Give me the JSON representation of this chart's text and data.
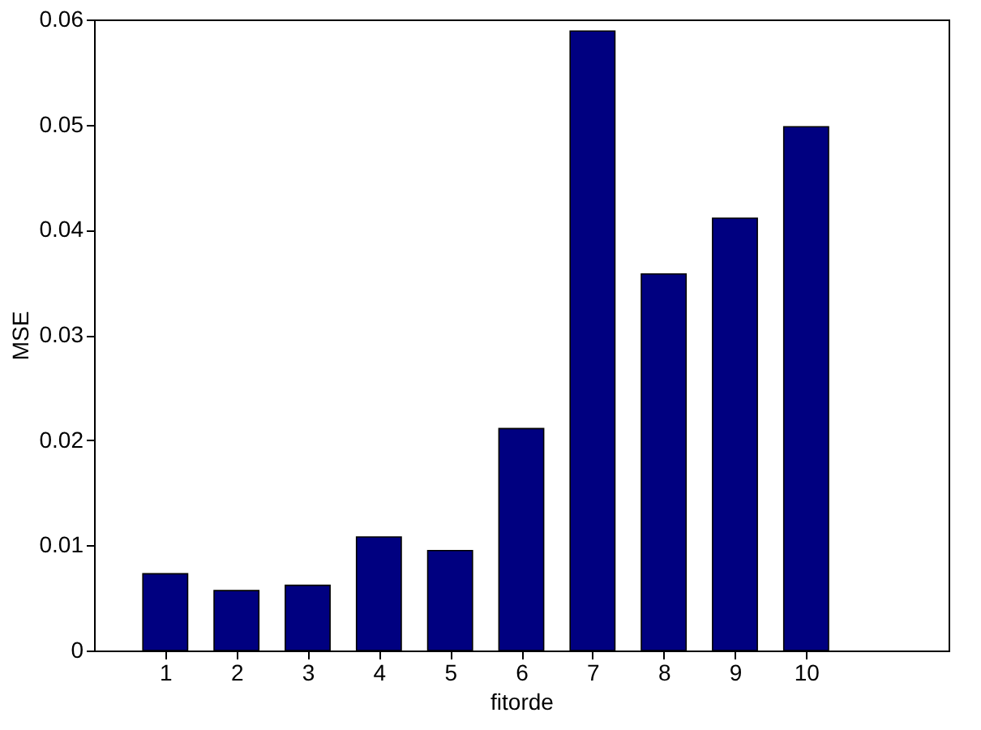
{
  "chart_data": {
    "type": "bar",
    "xlabel": "fitorde",
    "ylabel": "MSE",
    "x": [
      1,
      2,
      3,
      4,
      5,
      6,
      7,
      8,
      9,
      10
    ],
    "values": [
      0.0073,
      0.0057,
      0.0062,
      0.0108,
      0.0095,
      0.0211,
      0.0589,
      0.0358,
      0.0411,
      0.0498
    ],
    "color": "#000080",
    "xlim": [
      0,
      12
    ],
    "xticks": [
      1,
      2,
      3,
      4,
      5,
      6,
      7,
      8,
      9,
      10
    ],
    "ylim": [
      0,
      0.06
    ],
    "yticks": [
      0,
      0.01,
      0.02,
      0.03,
      0.04,
      0.05,
      0.06
    ],
    "grid": false
  }
}
